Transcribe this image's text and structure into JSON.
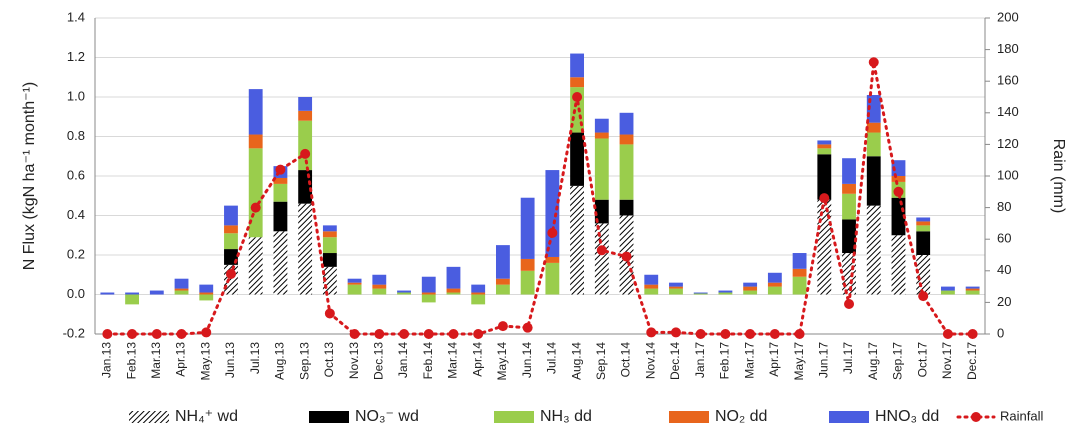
{
  "chart_data": {
    "type": "bar",
    "y_label": "N Flux (kgN ha⁻¹ month⁻¹)",
    "y2_label": "Rain (mm)",
    "categories": [
      "Jan.13",
      "Feb.13",
      "Mar.13",
      "Apr.13",
      "May.13",
      "Jun.13",
      "Jul.13",
      "Aug.13",
      "Sep.13",
      "Oct.13",
      "Nov.13",
      "Dec.13",
      "Jan.14",
      "Feb.14",
      "Mar.14",
      "Apr.14",
      "May.14",
      "Jun.14",
      "Jul.14",
      "Aug.14",
      "Sep.14",
      "Oct.14",
      "Nov.14",
      "Dec.14",
      "Jan.17",
      "Feb.17",
      "Mar.17",
      "Apr.17",
      "May.17",
      "Jun.17",
      "Jul.17",
      "Aug.17",
      "Sep.17",
      "Oct.17",
      "Nov.17",
      "Dec.17"
    ],
    "series": [
      {
        "name": "NH₄⁺ wd",
        "color": "#000000",
        "hatch": true,
        "values": [
          0,
          0,
          0,
          0,
          0,
          0.15,
          0.29,
          0.32,
          0.46,
          0.14,
          0,
          0,
          0,
          0,
          0,
          0,
          0,
          0,
          0,
          0.55,
          0.36,
          0.4,
          0,
          0,
          0,
          0,
          0,
          0,
          0,
          0.48,
          0.21,
          0.45,
          0.3,
          0.2,
          0,
          0
        ]
      },
      {
        "name": "NO₃⁻ wd",
        "color": "#000000",
        "values": [
          0,
          0,
          0,
          0,
          0,
          0.08,
          0,
          0.15,
          0.17,
          0.07,
          0,
          0,
          0,
          0,
          0,
          0,
          0,
          0,
          0,
          0.27,
          0.12,
          0.08,
          0,
          0,
          0,
          0,
          0,
          0,
          0,
          0.23,
          0.17,
          0.25,
          0.19,
          0.12,
          0,
          0
        ]
      },
      {
        "name": "NH₃ dd",
        "color": "#9acd4c",
        "values": [
          0,
          -0.05,
          0,
          0.02,
          -0.03,
          0.08,
          0.45,
          0.09,
          0.25,
          0.08,
          0.05,
          0.03,
          0.01,
          -0.04,
          0.01,
          -0.05,
          0.05,
          0.12,
          0.16,
          0.23,
          0.31,
          0.28,
          0.03,
          0.03,
          0.005,
          0.01,
          0.02,
          0.04,
          0.09,
          0.03,
          0.13,
          0.12,
          0.08,
          0.03,
          0.02,
          0.02
        ]
      },
      {
        "name": "NO₂ dd",
        "color": "#e8651c",
        "values": [
          0,
          0,
          0,
          0.01,
          0.01,
          0.04,
          0.07,
          0.03,
          0.05,
          0.03,
          0.01,
          0.02,
          0,
          0.01,
          0.02,
          0.01,
          0.03,
          0.06,
          0.03,
          0.05,
          0.03,
          0.05,
          0.02,
          0.01,
          0,
          0,
          0.02,
          0.02,
          0.04,
          0.02,
          0.05,
          0.05,
          0.03,
          0.02,
          0,
          0.01
        ]
      },
      {
        "name": "HNO₃ dd",
        "color": "#4a5de0",
        "values": [
          0.01,
          0.01,
          0.02,
          0.05,
          0.04,
          0.1,
          0.23,
          0.06,
          0.07,
          0.03,
          0.02,
          0.05,
          0.01,
          0.08,
          0.11,
          0.04,
          0.17,
          0.31,
          0.44,
          0.12,
          0.07,
          0.11,
          0.05,
          0.02,
          0.005,
          0.01,
          0.02,
          0.05,
          0.08,
          0.02,
          0.13,
          0.14,
          0.08,
          0.02,
          0.02,
          0.01
        ]
      },
      {
        "name": "Rainfall",
        "type": "line",
        "axis": "y2",
        "color": "#d7191c",
        "values": [
          0,
          0,
          0,
          0,
          1,
          38,
          80,
          104,
          114,
          13,
          0,
          0,
          0,
          0,
          0,
          0,
          5,
          4,
          64,
          150,
          53,
          49,
          1,
          1,
          0,
          0,
          0,
          0,
          0,
          86,
          19,
          172,
          90,
          24,
          0,
          0
        ]
      }
    ],
    "ylim": [
      -0.2,
      1.4
    ],
    "yticks": [
      -0.2,
      {
        "value": 0,
        "label": "0.0"
      },
      0.2,
      0.4,
      0.6,
      0.8,
      {
        "value": 1,
        "label": "1.0"
      },
      1.2,
      1.4
    ],
    "y2lim": [
      0,
      200
    ],
    "y2ticks": [
      0,
      20,
      40,
      60,
      80,
      100,
      120,
      140,
      160,
      180,
      200
    ],
    "grid": true,
    "legend": "bottom"
  }
}
